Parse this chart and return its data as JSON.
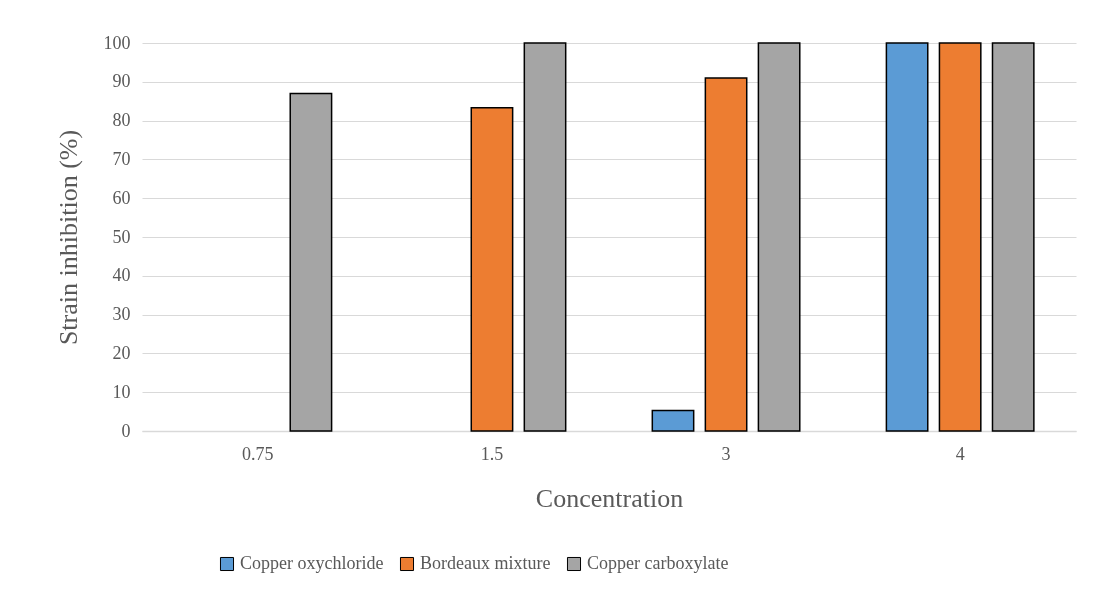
{
  "chart_data": {
    "type": "bar",
    "xlabel": "Concentration",
    "ylabel": "Strain inhibition (%)",
    "categories": [
      "0.75",
      "1.5",
      "3",
      "4"
    ],
    "series": [
      {
        "name": "Copper oxychloride",
        "color": "#5b9bd5",
        "values": [
          null,
          null,
          5.3,
          100
        ]
      },
      {
        "name": "Bordeaux mixture",
        "color": "#ed7d31",
        "values": [
          null,
          83.3,
          91,
          100
        ]
      },
      {
        "name": "Copper carboxylate",
        "color": "#a5a5a5",
        "values": [
          87,
          100,
          100,
          100
        ]
      }
    ],
    "ylim": [
      0,
      100
    ],
    "yticks": [
      0,
      10,
      20,
      30,
      40,
      50,
      60,
      70,
      80,
      90,
      100
    ],
    "grid": "y",
    "legend": "bottom"
  }
}
